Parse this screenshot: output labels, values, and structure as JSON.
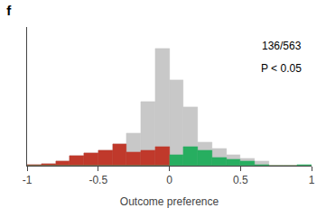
{
  "chart_data": {
    "type": "histogram",
    "title": "f",
    "xlabel": "Outcome preference",
    "annotations": [
      "136/563",
      "P < 0.05"
    ],
    "bins": [
      -1,
      -0.9,
      -0.8,
      -0.7,
      -0.6,
      -0.5,
      -0.4,
      -0.3,
      -0.2,
      -0.1,
      0,
      0.1,
      0.2,
      0.3,
      0.4,
      0.5,
      0.6,
      0.7,
      0.8,
      0.9,
      1
    ],
    "series": [
      {
        "color": "#c8c8c8",
        "values": [
          1,
          2,
          4,
          9,
          12,
          14,
          20,
          30,
          60,
          110,
          80,
          55,
          22,
          16,
          10,
          7,
          4,
          0,
          0,
          0
        ]
      },
      {
        "color": "#c0392b",
        "values": [
          1,
          2,
          4,
          9,
          12,
          14,
          20,
          13,
          14,
          18,
          0,
          0,
          0,
          0,
          0,
          0,
          0,
          0,
          0,
          0
        ]
      },
      {
        "color": "#27ae60",
        "values": [
          0,
          0,
          0,
          0,
          0,
          0,
          0,
          0,
          0,
          0,
          10,
          18,
          14,
          8,
          6,
          4,
          1,
          0,
          0,
          1
        ]
      }
    ],
    "stacked": false,
    "xlim": [
      -1,
      1
    ],
    "xticks": [
      -1,
      -0.5,
      0,
      0.5,
      1
    ],
    "ylim": [
      0,
      130
    ],
    "tick_labels": "x",
    "grid": false
  }
}
